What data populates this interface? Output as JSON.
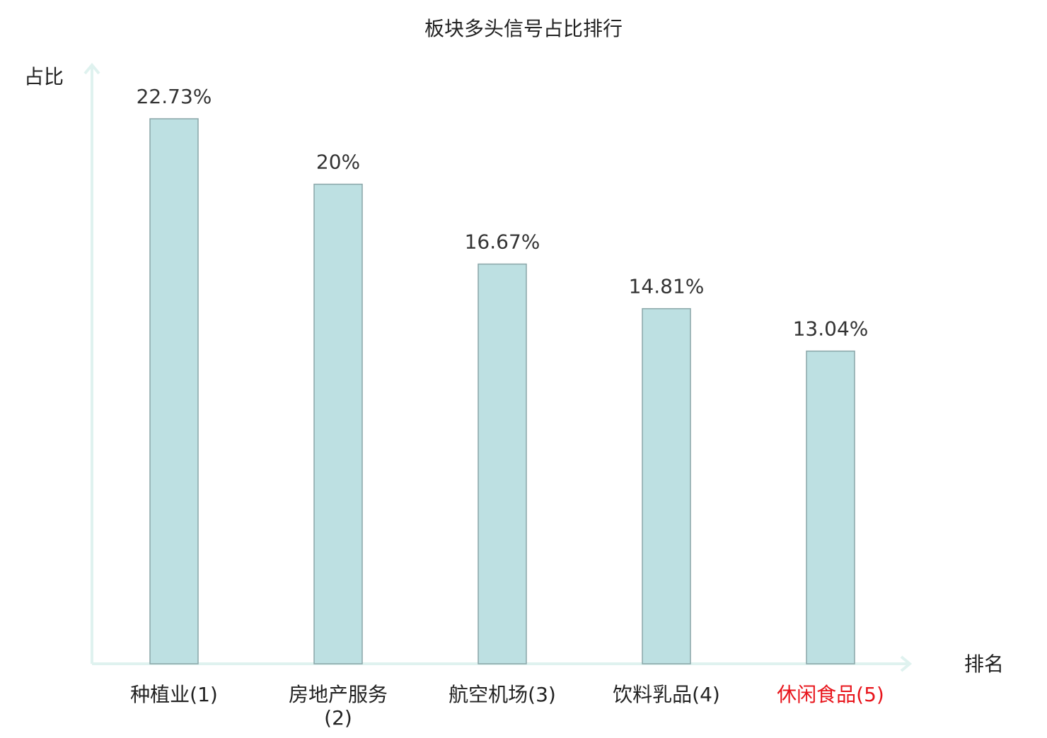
{
  "chart_data": {
    "type": "bar",
    "title": "板块多头信号占比排行",
    "y_label": "占比",
    "x_label": "排名",
    "categories": [
      "种植业(1)",
      "房地产服务(2)",
      "航空机场(3)",
      "饮料乳品(4)",
      "休闲食品(5)"
    ],
    "category_colors": [
      "#222222",
      "#222222",
      "#222222",
      "#222222",
      "#e8141b"
    ],
    "values": [
      22.73,
      20,
      16.67,
      14.81,
      13.04
    ],
    "value_labels": [
      "22.73%",
      "20%",
      "16.67%",
      "14.81%",
      "13.04%"
    ],
    "color": "#bde0e2",
    "ylim": [
      0,
      25
    ]
  }
}
